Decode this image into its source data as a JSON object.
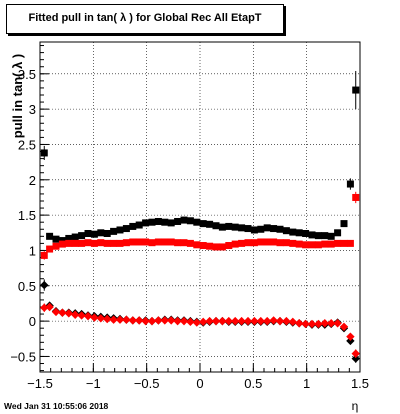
{
  "chart_data": {
    "type": "scatter",
    "title": "Fitted pull in tan( λ ) for Global Rec All EtapT",
    "xlabel": "η",
    "ylabel": "pull in tan( λ )",
    "xlim": [
      -1.5,
      1.5
    ],
    "ylim": [
      -0.72,
      3.95
    ],
    "grid": true,
    "xticks": [
      -1.5,
      -1,
      -0.5,
      0,
      0.5,
      1,
      1.5
    ],
    "xtick_labels": [
      "−1.5",
      "−1",
      "−0.5",
      "0",
      "0.5",
      "1",
      "1.5"
    ],
    "yticks": [
      -0.5,
      0,
      0.5,
      1,
      1.5,
      2,
      2.5,
      3,
      3.5
    ],
    "ytick_labels": [
      "−0.5",
      "0",
      "0.5",
      "1",
      "1.5",
      "2",
      "2.5",
      "3",
      "3.5"
    ],
    "series": [
      {
        "marker": "square",
        "color": "#000000",
        "x": [
          -1.46,
          -1.41,
          -1.35,
          -1.29,
          -1.23,
          -1.17,
          -1.11,
          -1.05,
          -0.99,
          -0.93,
          -0.87,
          -0.81,
          -0.75,
          -0.69,
          -0.63,
          -0.57,
          -0.51,
          -0.45,
          -0.39,
          -0.33,
          -0.27,
          -0.21,
          -0.15,
          -0.09,
          -0.03,
          0.03,
          0.09,
          0.15,
          0.21,
          0.27,
          0.33,
          0.39,
          0.45,
          0.51,
          0.57,
          0.63,
          0.69,
          0.75,
          0.81,
          0.87,
          0.93,
          0.99,
          1.05,
          1.11,
          1.17,
          1.23,
          1.29,
          1.35,
          1.41,
          1.46
        ],
        "y": [
          2.38,
          1.2,
          1.16,
          1.14,
          1.17,
          1.19,
          1.21,
          1.24,
          1.23,
          1.25,
          1.24,
          1.27,
          1.29,
          1.31,
          1.34,
          1.36,
          1.39,
          1.4,
          1.41,
          1.4,
          1.39,
          1.41,
          1.43,
          1.42,
          1.4,
          1.38,
          1.37,
          1.35,
          1.33,
          1.34,
          1.33,
          1.32,
          1.31,
          1.29,
          1.3,
          1.32,
          1.31,
          1.3,
          1.28,
          1.26,
          1.25,
          1.24,
          1.22,
          1.21,
          1.21,
          1.2,
          1.25,
          1.38,
          1.94,
          3.27
        ],
        "yerr": [
          0.1,
          0.03,
          0.02,
          0.02,
          0.02,
          0.02,
          0.02,
          0.02,
          0.02,
          0.02,
          0.02,
          0.02,
          0.02,
          0.02,
          0.02,
          0.02,
          0.02,
          0.02,
          0.02,
          0.02,
          0.02,
          0.02,
          0.02,
          0.02,
          0.02,
          0.02,
          0.02,
          0.02,
          0.02,
          0.02,
          0.02,
          0.02,
          0.02,
          0.02,
          0.02,
          0.02,
          0.02,
          0.02,
          0.02,
          0.02,
          0.02,
          0.02,
          0.02,
          0.02,
          0.02,
          0.02,
          0.03,
          0.04,
          0.08,
          0.27
        ]
      },
      {
        "marker": "square",
        "color": "#ff0000",
        "x": [
          -1.46,
          -1.41,
          -1.35,
          -1.29,
          -1.23,
          -1.17,
          -1.11,
          -1.05,
          -0.99,
          -0.93,
          -0.87,
          -0.81,
          -0.75,
          -0.69,
          -0.63,
          -0.57,
          -0.51,
          -0.45,
          -0.39,
          -0.33,
          -0.27,
          -0.21,
          -0.15,
          -0.09,
          -0.03,
          0.03,
          0.09,
          0.15,
          0.21,
          0.27,
          0.33,
          0.39,
          0.45,
          0.51,
          0.57,
          0.63,
          0.69,
          0.75,
          0.81,
          0.87,
          0.93,
          0.99,
          1.05,
          1.11,
          1.17,
          1.23,
          1.29,
          1.35,
          1.41,
          1.46
        ],
        "y": [
          0.93,
          1.02,
          1.06,
          1.09,
          1.1,
          1.1,
          1.1,
          1.11,
          1.1,
          1.11,
          1.1,
          1.1,
          1.1,
          1.11,
          1.12,
          1.12,
          1.12,
          1.11,
          1.12,
          1.12,
          1.12,
          1.11,
          1.11,
          1.1,
          1.08,
          1.07,
          1.06,
          1.05,
          1.05,
          1.07,
          1.09,
          1.1,
          1.11,
          1.11,
          1.12,
          1.12,
          1.12,
          1.11,
          1.11,
          1.1,
          1.09,
          1.08,
          1.08,
          1.08,
          1.09,
          1.09,
          1.1,
          1.1,
          1.1,
          1.75
        ],
        "yerr": [
          0.06,
          0.03,
          0.02,
          0.02,
          0.02,
          0.02,
          0.02,
          0.02,
          0.02,
          0.02,
          0.02,
          0.02,
          0.02,
          0.02,
          0.02,
          0.02,
          0.02,
          0.02,
          0.02,
          0.02,
          0.02,
          0.02,
          0.02,
          0.02,
          0.02,
          0.02,
          0.02,
          0.02,
          0.02,
          0.02,
          0.02,
          0.02,
          0.02,
          0.02,
          0.02,
          0.02,
          0.02,
          0.02,
          0.02,
          0.02,
          0.02,
          0.02,
          0.02,
          0.02,
          0.02,
          0.02,
          0.02,
          0.02,
          0.03,
          0.08
        ]
      },
      {
        "marker": "diamond",
        "color": "#000000",
        "x": [
          -1.46,
          -1.41,
          -1.35,
          -1.29,
          -1.23,
          -1.17,
          -1.11,
          -1.05,
          -0.99,
          -0.93,
          -0.87,
          -0.81,
          -0.75,
          -0.69,
          -0.63,
          -0.57,
          -0.51,
          -0.45,
          -0.39,
          -0.33,
          -0.27,
          -0.21,
          -0.15,
          -0.09,
          -0.03,
          0.03,
          0.09,
          0.15,
          0.21,
          0.27,
          0.33,
          0.39,
          0.45,
          0.51,
          0.57,
          0.63,
          0.69,
          0.75,
          0.81,
          0.87,
          0.93,
          0.99,
          1.05,
          1.11,
          1.17,
          1.23,
          1.29,
          1.35,
          1.41,
          1.46
        ],
        "y": [
          0.51,
          0.22,
          0.14,
          0.12,
          0.12,
          0.11,
          0.1,
          0.08,
          0.07,
          0.06,
          0.05,
          0.04,
          0.03,
          0.02,
          0.01,
          0.01,
          0.01,
          0.0,
          0.01,
          0.02,
          0.02,
          0.01,
          0.01,
          0.0,
          -0.01,
          -0.02,
          -0.01,
          0.0,
          0.0,
          -0.01,
          -0.01,
          -0.01,
          -0.01,
          -0.01,
          -0.01,
          -0.01,
          0.0,
          0.0,
          -0.01,
          -0.02,
          -0.03,
          -0.04,
          -0.05,
          -0.05,
          -0.05,
          -0.04,
          -0.02,
          -0.1,
          -0.28,
          -0.53
        ],
        "yerr": [
          0.08,
          0.03,
          0.02,
          0.02,
          0.02,
          0.02,
          0.02,
          0.02,
          0.02,
          0.02,
          0.02,
          0.02,
          0.02,
          0.02,
          0.02,
          0.02,
          0.02,
          0.02,
          0.02,
          0.02,
          0.02,
          0.02,
          0.02,
          0.02,
          0.02,
          0.02,
          0.02,
          0.02,
          0.02,
          0.02,
          0.02,
          0.02,
          0.02,
          0.02,
          0.02,
          0.02,
          0.02,
          0.02,
          0.02,
          0.02,
          0.02,
          0.02,
          0.02,
          0.02,
          0.02,
          0.02,
          0.02,
          0.03,
          0.04,
          0.06
        ]
      },
      {
        "marker": "diamond",
        "color": "#ff0000",
        "x": [
          -1.46,
          -1.41,
          -1.35,
          -1.29,
          -1.23,
          -1.17,
          -1.11,
          -1.05,
          -0.99,
          -0.93,
          -0.87,
          -0.81,
          -0.75,
          -0.69,
          -0.63,
          -0.57,
          -0.51,
          -0.45,
          -0.39,
          -0.33,
          -0.27,
          -0.21,
          -0.15,
          -0.09,
          -0.03,
          0.03,
          0.09,
          0.15,
          0.21,
          0.27,
          0.33,
          0.39,
          0.45,
          0.51,
          0.57,
          0.63,
          0.69,
          0.75,
          0.81,
          0.87,
          0.93,
          0.99,
          1.05,
          1.11,
          1.17,
          1.23,
          1.29,
          1.35,
          1.41,
          1.46
        ],
        "y": [
          0.19,
          0.2,
          0.13,
          0.12,
          0.11,
          0.09,
          0.08,
          0.07,
          0.05,
          0.04,
          0.03,
          0.02,
          0.02,
          0.02,
          0.01,
          0.01,
          0.0,
          0.0,
          0.01,
          0.01,
          0.01,
          0.0,
          0.0,
          -0.01,
          -0.02,
          -0.01,
          0.0,
          0.0,
          0.0,
          0.0,
          0.0,
          0.0,
          0.0,
          0.0,
          0.0,
          0.0,
          0.01,
          0.0,
          0.0,
          -0.01,
          -0.03,
          -0.04,
          -0.04,
          -0.04,
          -0.03,
          -0.03,
          -0.03,
          -0.08,
          -0.22,
          -0.46
        ],
        "yerr": [
          0.06,
          0.03,
          0.02,
          0.02,
          0.02,
          0.02,
          0.02,
          0.02,
          0.02,
          0.02,
          0.02,
          0.02,
          0.02,
          0.02,
          0.02,
          0.02,
          0.02,
          0.02,
          0.02,
          0.02,
          0.02,
          0.02,
          0.02,
          0.02,
          0.02,
          0.02,
          0.02,
          0.02,
          0.02,
          0.02,
          0.02,
          0.02,
          0.02,
          0.02,
          0.02,
          0.02,
          0.02,
          0.02,
          0.02,
          0.02,
          0.02,
          0.02,
          0.02,
          0.02,
          0.02,
          0.02,
          0.02,
          0.02,
          0.03,
          0.06
        ]
      }
    ]
  },
  "footer": {
    "timestamp": "Wed Jan 31 10:55:06 2018"
  }
}
